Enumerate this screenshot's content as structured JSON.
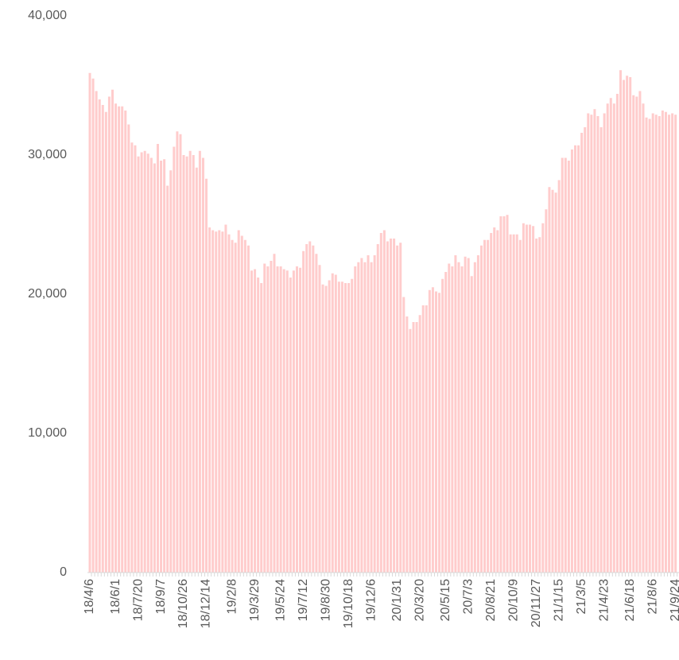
{
  "chart_data": {
    "type": "bar",
    "categories": [
      "18/4/6",
      null,
      null,
      null,
      null,
      null,
      null,
      null,
      "18/6/1",
      null,
      null,
      null,
      null,
      null,
      null,
      "18/7/20",
      null,
      null,
      null,
      null,
      null,
      null,
      "18/9/7",
      null,
      null,
      null,
      null,
      null,
      null,
      "18/10/26",
      null,
      null,
      null,
      null,
      null,
      null,
      "18/12/14",
      null,
      null,
      null,
      null,
      null,
      null,
      null,
      "19/2/8",
      null,
      null,
      null,
      null,
      null,
      null,
      "19/3/29",
      null,
      null,
      null,
      null,
      null,
      null,
      null,
      "19/5/24",
      null,
      null,
      null,
      null,
      null,
      null,
      "19/7/12",
      null,
      null,
      null,
      null,
      null,
      null,
      "19/8/30",
      null,
      null,
      null,
      null,
      null,
      null,
      "19/10/18",
      null,
      null,
      null,
      null,
      null,
      null,
      "19/12/6",
      null,
      null,
      null,
      null,
      null,
      null,
      null,
      "20/1/31",
      null,
      null,
      null,
      null,
      null,
      null,
      "20/3/20",
      null,
      null,
      null,
      null,
      null,
      null,
      null,
      "20/5/15",
      null,
      null,
      null,
      null,
      null,
      null,
      "20/7/3",
      null,
      null,
      null,
      null,
      null,
      null,
      "20/8/21",
      null,
      null,
      null,
      null,
      null,
      null,
      "20/10/9",
      null,
      null,
      null,
      null,
      null,
      null,
      "20/11/27",
      null,
      null,
      null,
      null,
      null,
      null,
      "21/1/15",
      null,
      null,
      null,
      null,
      null,
      null,
      "21/3/5",
      null,
      null,
      null,
      null,
      null,
      null,
      "21/4/23",
      null,
      null,
      null,
      null,
      null,
      null,
      null,
      "21/6/18",
      null,
      null,
      null,
      null,
      null,
      null,
      "21/8/6",
      null,
      null,
      null,
      null,
      null,
      null,
      "21/9/24"
    ],
    "values": [
      35900,
      35500,
      34600,
      34000,
      33600,
      33100,
      34200,
      34700,
      33700,
      33500,
      33500,
      33200,
      32200,
      30900,
      30700,
      29900,
      30200,
      30300,
      30100,
      29800,
      29400,
      30800,
      29600,
      29700,
      27800,
      28900,
      30600,
      31700,
      31500,
      30000,
      29900,
      30300,
      30000,
      29100,
      30300,
      29800,
      28300,
      24800,
      24600,
      24500,
      24600,
      24500,
      25000,
      24300,
      23900,
      23700,
      24600,
      24200,
      23900,
      23500,
      21700,
      21800,
      21200,
      20800,
      22200,
      22000,
      22400,
      22900,
      22000,
      22000,
      21800,
      21700,
      21200,
      21700,
      22000,
      21900,
      23100,
      23600,
      23800,
      23500,
      22900,
      22100,
      20700,
      20600,
      21000,
      21500,
      21400,
      20900,
      20900,
      20800,
      20800,
      21100,
      22000,
      22300,
      22600,
      22300,
      22800,
      22300,
      22800,
      23600,
      24400,
      24600,
      23800,
      24000,
      24000,
      23500,
      23700,
      19800,
      18400,
      17500,
      18000,
      18000,
      18500,
      19200,
      19200,
      20300,
      20500,
      20200,
      20100,
      21100,
      21600,
      22200,
      22000,
      22800,
      22300,
      22000,
      22700,
      22600,
      21300,
      22300,
      22800,
      23500,
      23900,
      23900,
      24400,
      24800,
      24600,
      25600,
      25600,
      25700,
      24300,
      24300,
      24300,
      23900,
      25100,
      25000,
      25000,
      24900,
      24000,
      24100,
      25100,
      26100,
      27700,
      27500,
      27300,
      28200,
      29800,
      29800,
      29600,
      30400,
      30700,
      30700,
      31600,
      32000,
      33000,
      32900,
      33300,
      32800,
      32000,
      33000,
      33700,
      34100,
      33700,
      34400,
      36100,
      35400,
      35700,
      35600,
      34300,
      34200,
      34600,
      33700,
      32700,
      32600,
      33000,
      32900,
      32800,
      33200,
      33100,
      32900,
      33000,
      32900
    ],
    "color": "#ffcccc",
    "ylim": [
      0,
      40000
    ],
    "yticks": [
      0,
      {
        "value": 10000,
        "label": "10,000"
      },
      {
        "value": 20000,
        "label": "20,000"
      },
      {
        "value": 30000,
        "label": "30,000"
      },
      {
        "value": 40000,
        "label": "40,000"
      }
    ],
    "grid": false
  }
}
